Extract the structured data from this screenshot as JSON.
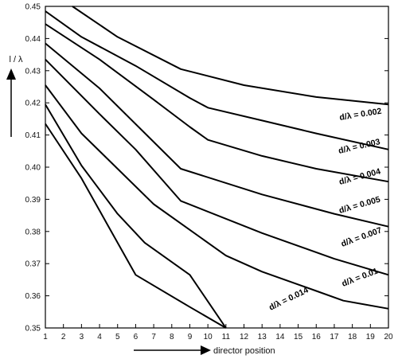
{
  "chart_data": {
    "type": "line",
    "xlabel": "director position",
    "ylabel": "l / λ",
    "xlim": [
      1,
      20
    ],
    "ylim": [
      0.35,
      0.45
    ],
    "x_ticks": [
      1,
      2,
      3,
      4,
      5,
      6,
      7,
      8,
      9,
      10,
      11,
      12,
      13,
      14,
      15,
      16,
      17,
      18,
      19,
      20
    ],
    "y_ticks": [
      "0.35",
      "0.36",
      "0.37",
      "0.38",
      "0.39",
      "0.40",
      "0.41",
      "0.42",
      "0.43",
      "0.44",
      "0.45"
    ],
    "grid": false,
    "series": [
      {
        "name": "d/λ = 0.002",
        "points": [
          [
            2.5,
            0.45
          ],
          [
            5,
            0.4405
          ],
          [
            8.5,
            0.4305
          ],
          [
            12,
            0.4255
          ],
          [
            16,
            0.4218
          ],
          [
            20,
            0.4195
          ]
        ]
      },
      {
        "name": "d/λ = 0.003",
        "points": [
          [
            1,
            0.4485
          ],
          [
            3,
            0.4405
          ],
          [
            6,
            0.4315
          ],
          [
            9,
            0.4215
          ],
          [
            10,
            0.4185
          ],
          [
            13,
            0.4145
          ],
          [
            16,
            0.4105
          ],
          [
            20,
            0.4055
          ]
        ]
      },
      {
        "name": "d/λ = 0.004",
        "points": [
          [
            1,
            0.4445
          ],
          [
            4,
            0.4335
          ],
          [
            7,
            0.421
          ],
          [
            9,
            0.4125
          ],
          [
            10,
            0.4085
          ],
          [
            13,
            0.4035
          ],
          [
            16,
            0.3995
          ],
          [
            20,
            0.3955
          ]
        ]
      },
      {
        "name": "d/λ = 0.005",
        "points": [
          [
            1,
            0.4385
          ],
          [
            4,
            0.4245
          ],
          [
            8.5,
            0.3995
          ],
          [
            13,
            0.3915
          ],
          [
            17,
            0.3855
          ],
          [
            20,
            0.3815
          ]
        ]
      },
      {
        "name": "d/λ = 0.007",
        "points": [
          [
            1,
            0.4335
          ],
          [
            4,
            0.4165
          ],
          [
            6,
            0.4055
          ],
          [
            8.5,
            0.3895
          ],
          [
            13,
            0.3795
          ],
          [
            17,
            0.3715
          ],
          [
            20,
            0.3665
          ]
        ]
      },
      {
        "name": "d/λ = 0.01",
        "points": [
          [
            1,
            0.4255
          ],
          [
            3,
            0.4105
          ],
          [
            5,
            0.3995
          ],
          [
            7,
            0.3885
          ],
          [
            9,
            0.3805
          ],
          [
            11,
            0.3725
          ],
          [
            13,
            0.3675
          ],
          [
            16,
            0.3615
          ],
          [
            17.5,
            0.3585
          ],
          [
            20,
            0.356
          ]
        ]
      },
      {
        "name": "d/λ = 0.014",
        "points": [
          [
            1,
            0.4195
          ],
          [
            3,
            0.4005
          ],
          [
            5,
            0.3855
          ],
          [
            6.5,
            0.3765
          ],
          [
            9,
            0.3665
          ],
          [
            11,
            0.35
          ]
        ]
      },
      {
        "name": "",
        "points": [
          [
            1,
            0.4135
          ],
          [
            3,
            0.3965
          ],
          [
            4.5,
            0.3815
          ],
          [
            6,
            0.3665
          ],
          [
            9,
            0.3565
          ],
          [
            11,
            0.35
          ]
        ]
      }
    ]
  }
}
